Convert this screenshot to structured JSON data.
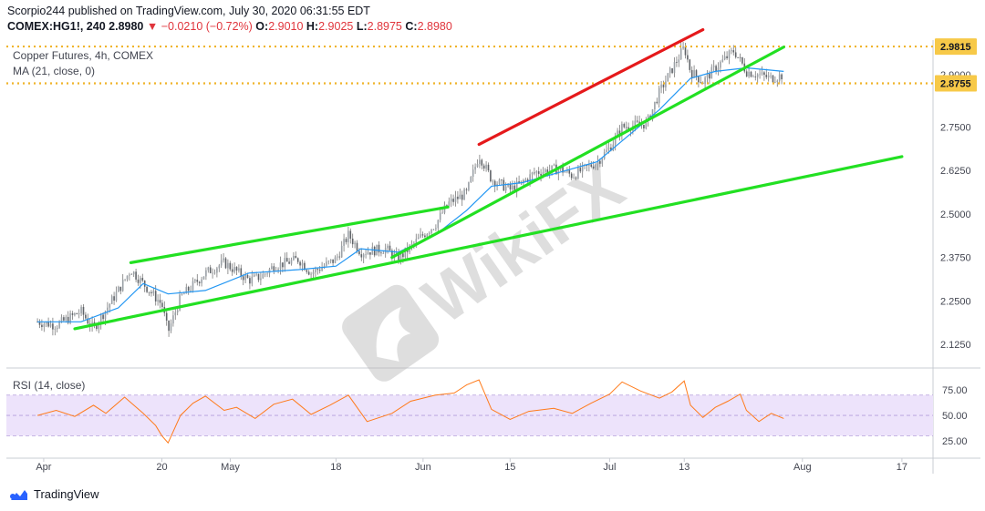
{
  "header": {
    "publisher_line": "Scorpio244 published on TradingView.com, July 30, 2020 06:31:55 EDT",
    "symbol": "COMEX:HG1!, 240",
    "last": "2.8980",
    "change_arrow": "▼",
    "change": "−0.0210 (−0.72%)",
    "open_label": "O:",
    "open": "2.9010",
    "high_label": "H:",
    "high": "2.9025",
    "low_label": "L:",
    "low": "2.8975",
    "close_label": "C:",
    "close": "2.8980"
  },
  "overlay": {
    "title": "Copper Futures, 4h, COMEX",
    "ma_label": "MA (21, close, 0)",
    "rsi_label": "RSI (14, close)"
  },
  "watermark": "WikiFX",
  "footer": {
    "brand": "TradingView"
  },
  "colors": {
    "up": "#26a69a",
    "down": "#ef5350",
    "candle": "#7a7a7a",
    "ma": "#2196f3",
    "trendline_green": "#22e022",
    "trendline_red": "#e5191b",
    "level": "#f0b429",
    "rsi_line": "#ff7a1a",
    "rsi_band": "#ede3fb",
    "axis_text": "#434651"
  },
  "chart_data": [
    {
      "type": "candlestick",
      "title": "Copper Futures, 4h, COMEX",
      "x_tick_labels": [
        "Apr",
        "20",
        "May",
        "18",
        "Jun",
        "15",
        "Jul",
        "13",
        "Aug",
        "17"
      ],
      "x_tick_dates": [
        "2020-04-01",
        "2020-04-20",
        "2020-05-01",
        "2020-05-18",
        "2020-06-01",
        "2020-06-15",
        "2020-07-01",
        "2020-07-13",
        "2020-08-01",
        "2020-08-17"
      ],
      "y_ticks": [
        "2.9000",
        "2.7500",
        "2.6250",
        "2.5000",
        "2.3750",
        "2.2500",
        "2.1250"
      ],
      "ylim": [
        2.065,
        3.0
      ],
      "price_path": [
        [
          "2020-03-31",
          2.19
        ],
        [
          "2020-04-03",
          2.18
        ],
        [
          "2020-04-07",
          2.22
        ],
        [
          "2020-04-09",
          2.17
        ],
        [
          "2020-04-13",
          2.28
        ],
        [
          "2020-04-15",
          2.34
        ],
        [
          "2020-04-17",
          2.3
        ],
        [
          "2020-04-20",
          2.24
        ],
        [
          "2020-04-21",
          2.16
        ],
        [
          "2020-04-23",
          2.26
        ],
        [
          "2020-04-27",
          2.33
        ],
        [
          "2020-04-30",
          2.36
        ],
        [
          "2020-05-04",
          2.31
        ],
        [
          "2020-05-06",
          2.32
        ],
        [
          "2020-05-08",
          2.35
        ],
        [
          "2020-05-12",
          2.37
        ],
        [
          "2020-05-14",
          2.33
        ],
        [
          "2020-05-18",
          2.37
        ],
        [
          "2020-05-20",
          2.44
        ],
        [
          "2020-05-22",
          2.39
        ],
        [
          "2020-05-26",
          2.4
        ],
        [
          "2020-05-28",
          2.37
        ],
        [
          "2020-06-01",
          2.44
        ],
        [
          "2020-06-03",
          2.47
        ],
        [
          "2020-06-05",
          2.53
        ],
        [
          "2020-06-08",
          2.56
        ],
        [
          "2020-06-10",
          2.67
        ],
        [
          "2020-06-12",
          2.6
        ],
        [
          "2020-06-15",
          2.57
        ],
        [
          "2020-06-17",
          2.59
        ],
        [
          "2020-06-19",
          2.62
        ],
        [
          "2020-06-23",
          2.63
        ],
        [
          "2020-06-25",
          2.61
        ],
        [
          "2020-06-29",
          2.65
        ],
        [
          "2020-07-01",
          2.69
        ],
        [
          "2020-07-03",
          2.75
        ],
        [
          "2020-07-07",
          2.76
        ],
        [
          "2020-07-09",
          2.85
        ],
        [
          "2020-07-13",
          2.98
        ],
        [
          "2020-07-14",
          2.91
        ],
        [
          "2020-07-16",
          2.88
        ],
        [
          "2020-07-18",
          2.92
        ],
        [
          "2020-07-21",
          2.97
        ],
        [
          "2020-07-23",
          2.91
        ],
        [
          "2020-07-27",
          2.89
        ],
        [
          "2020-07-29",
          2.9
        ]
      ],
      "ma_path": [
        [
          "2020-03-31",
          2.19
        ],
        [
          "2020-04-07",
          2.19
        ],
        [
          "2020-04-13",
          2.23
        ],
        [
          "2020-04-17",
          2.3
        ],
        [
          "2020-04-21",
          2.27
        ],
        [
          "2020-04-27",
          2.28
        ],
        [
          "2020-05-04",
          2.33
        ],
        [
          "2020-05-12",
          2.34
        ],
        [
          "2020-05-18",
          2.35
        ],
        [
          "2020-05-22",
          2.4
        ],
        [
          "2020-05-28",
          2.39
        ],
        [
          "2020-06-03",
          2.44
        ],
        [
          "2020-06-08",
          2.51
        ],
        [
          "2020-06-12",
          2.58
        ],
        [
          "2020-06-17",
          2.59
        ],
        [
          "2020-06-23",
          2.62
        ],
        [
          "2020-06-29",
          2.65
        ],
        [
          "2020-07-03",
          2.71
        ],
        [
          "2020-07-09",
          2.8
        ],
        [
          "2020-07-14",
          2.89
        ],
        [
          "2020-07-18",
          2.91
        ],
        [
          "2020-07-23",
          2.92
        ],
        [
          "2020-07-29",
          2.91
        ]
      ],
      "levels": [
        {
          "label": "2.9815",
          "value": 2.9815
        },
        {
          "label": "2.8755",
          "value": 2.8755
        }
      ],
      "trendlines": [
        {
          "color": "green",
          "from": [
            "2020-04-15",
            2.36
          ],
          "to": [
            "2020-06-05",
            2.52
          ]
        },
        {
          "color": "green",
          "from": [
            "2020-04-06",
            2.17
          ],
          "to": [
            "2020-08-17",
            2.665
          ]
        },
        {
          "color": "green",
          "from": [
            "2020-05-27",
            2.375
          ],
          "to": [
            "2020-07-29",
            2.98
          ]
        },
        {
          "color": "red",
          "from": [
            "2020-06-10",
            2.7
          ],
          "to": [
            "2020-07-16",
            3.03
          ]
        }
      ]
    },
    {
      "type": "line",
      "title": "RSI (14, close)",
      "y_ticks": [
        "75.00",
        "50.00",
        "25.00"
      ],
      "ylim": [
        16,
        94
      ],
      "band": [
        30,
        70
      ],
      "values": [
        [
          "2020-03-31",
          50
        ],
        [
          "2020-04-03",
          55
        ],
        [
          "2020-04-06",
          49
        ],
        [
          "2020-04-09",
          60
        ],
        [
          "2020-04-11",
          52
        ],
        [
          "2020-04-14",
          68
        ],
        [
          "2020-04-17",
          52
        ],
        [
          "2020-04-19",
          40
        ],
        [
          "2020-04-20",
          30
        ],
        [
          "2020-04-21",
          23
        ],
        [
          "2020-04-23",
          50
        ],
        [
          "2020-04-25",
          62
        ],
        [
          "2020-04-27",
          69
        ],
        [
          "2020-04-30",
          55
        ],
        [
          "2020-05-02",
          58
        ],
        [
          "2020-05-05",
          47
        ],
        [
          "2020-05-08",
          61
        ],
        [
          "2020-05-11",
          66
        ],
        [
          "2020-05-14",
          51
        ],
        [
          "2020-05-17",
          60
        ],
        [
          "2020-05-20",
          70
        ],
        [
          "2020-05-23",
          44
        ],
        [
          "2020-05-27",
          52
        ],
        [
          "2020-05-30",
          64
        ],
        [
          "2020-06-03",
          70
        ],
        [
          "2020-06-06",
          72
        ],
        [
          "2020-06-08",
          80
        ],
        [
          "2020-06-10",
          85
        ],
        [
          "2020-06-12",
          56
        ],
        [
          "2020-06-15",
          46
        ],
        [
          "2020-06-18",
          54
        ],
        [
          "2020-06-22",
          57
        ],
        [
          "2020-06-25",
          52
        ],
        [
          "2020-06-28",
          62
        ],
        [
          "2020-07-01",
          71
        ],
        [
          "2020-07-03",
          83
        ],
        [
          "2020-07-06",
          74
        ],
        [
          "2020-07-09",
          67
        ],
        [
          "2020-07-11",
          73
        ],
        [
          "2020-07-13",
          84
        ],
        [
          "2020-07-14",
          60
        ],
        [
          "2020-07-16",
          48
        ],
        [
          "2020-07-18",
          58
        ],
        [
          "2020-07-20",
          64
        ],
        [
          "2020-07-22",
          71
        ],
        [
          "2020-07-23",
          55
        ],
        [
          "2020-07-25",
          44
        ],
        [
          "2020-07-27",
          52
        ],
        [
          "2020-07-29",
          47
        ]
      ]
    }
  ]
}
